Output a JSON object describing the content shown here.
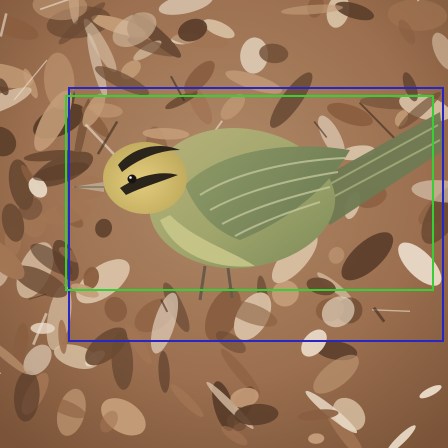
{
  "scene": {
    "subject": "bird",
    "colors": {
      "leaf_dark": "#6b4a33",
      "leaf_mid": "#a27554",
      "leaf_light": "#d8c0a4",
      "bird_body": "#9fa56b",
      "bird_belly": "#c6c488",
      "bird_head": "#d8bf6a",
      "stripe": "#2a241a",
      "box_outer": "#2727c8",
      "box_inner": "#36cf36"
    }
  }
}
